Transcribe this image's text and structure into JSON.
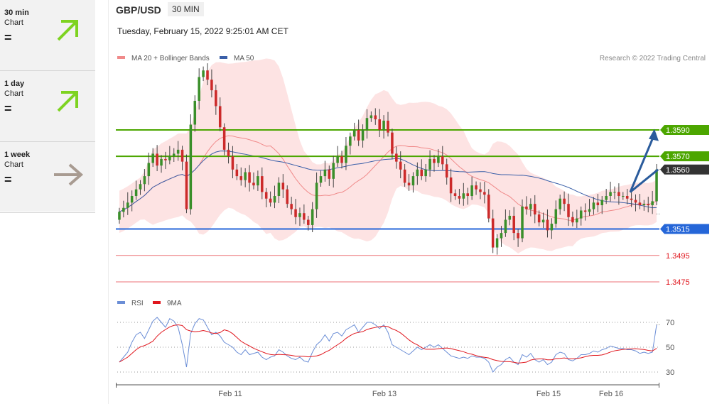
{
  "sidebar": {
    "items": [
      {
        "period": "30 min",
        "sub": "Chart",
        "signal": "=",
        "arrow_color": "#7ed321",
        "direction": "up"
      },
      {
        "period": "1 day",
        "sub": "Chart",
        "signal": "=",
        "arrow_color": "#7ed321",
        "direction": "up"
      },
      {
        "period": "1 week",
        "sub": "Chart",
        "signal": "=",
        "arrow_color": "#a89b91",
        "direction": "flat"
      }
    ]
  },
  "header": {
    "pair": "GBP/USD",
    "timeframe": "30 MIN",
    "timestamp": "Tuesday, February 15, 2022 9:25:01 AM CET"
  },
  "chart_data": [
    {
      "type": "candlestick",
      "legend": [
        {
          "label": "MA 20 + Bollinger Bands",
          "color": "#f08a8a"
        },
        {
          "label": "MA 50",
          "color": "#3a5fa8"
        }
      ],
      "credit": "Research © 2022 Trading Central",
      "x_ticks": [
        "Feb 11",
        "Feb 13",
        "Feb 15",
        "Feb 16"
      ],
      "ylim": [
        1.3468,
        1.3655
      ],
      "last_price": {
        "value": 1.356,
        "label": "1.3560",
        "color": "#333333"
      },
      "levels": [
        {
          "value": 1.359,
          "label": "1.3590",
          "type": "resistance",
          "color": "#4ca600"
        },
        {
          "value": 1.357,
          "label": "1.3570",
          "type": "resistance",
          "color": "#4ca600"
        },
        {
          "value": 1.3515,
          "label": "1.3515",
          "type": "pivot",
          "color": "#2566d8"
        },
        {
          "value": 1.3495,
          "label": "1.3495",
          "type": "support",
          "color": "#e0161d"
        },
        {
          "value": 1.3475,
          "label": "1.3475",
          "type": "support",
          "color": "#e0161d"
        }
      ],
      "forecast": [
        1.356,
        1.3543,
        1.3588
      ],
      "closes": [
        1.3528,
        1.3531,
        1.3535,
        1.354,
        1.3545,
        1.3549,
        1.3555,
        1.3565,
        1.3572,
        1.3563,
        1.3568,
        1.3567,
        1.357,
        1.3572,
        1.3575,
        1.3566,
        1.353,
        1.3594,
        1.3612,
        1.363,
        1.3635,
        1.3628,
        1.362,
        1.3608,
        1.3592,
        1.3575,
        1.357,
        1.356,
        1.3555,
        1.3552,
        1.3558,
        1.355,
        1.3548,
        1.3555,
        1.3543,
        1.3538,
        1.3535,
        1.354,
        1.355,
        1.3545,
        1.3534,
        1.353,
        1.3524,
        1.3527,
        1.3522,
        1.3518,
        1.353,
        1.355,
        1.3555,
        1.356,
        1.3553,
        1.3565,
        1.357,
        1.3565,
        1.3578,
        1.3585,
        1.359,
        1.3582,
        1.359,
        1.3599,
        1.3601,
        1.3598,
        1.359,
        1.3597,
        1.3588,
        1.3572,
        1.3566,
        1.356,
        1.355,
        1.3548,
        1.3555,
        1.356,
        1.3555,
        1.356,
        1.3568,
        1.3565,
        1.357,
        1.3564,
        1.3554,
        1.3542,
        1.354,
        1.3538,
        1.3542,
        1.354,
        1.3548,
        1.3545,
        1.3543,
        1.3541,
        1.3523,
        1.3501,
        1.3508,
        1.3512,
        1.3522,
        1.3525,
        1.3512,
        1.3508,
        1.3532,
        1.353,
        1.3534,
        1.3526,
        1.352,
        1.3522,
        1.3514,
        1.3519,
        1.353,
        1.3538,
        1.3534,
        1.3524,
        1.352,
        1.3523,
        1.3529,
        1.3528,
        1.353,
        1.3535,
        1.3533,
        1.3537,
        1.354,
        1.3543,
        1.3543,
        1.354,
        1.354,
        1.3538,
        1.3537,
        1.3535,
        1.3533,
        1.3534,
        1.3533,
        1.3536,
        1.356
      ]
    },
    {
      "type": "line",
      "legend": [
        {
          "label": "RSI",
          "color": "#6b8ed6"
        },
        {
          "label": "9MA",
          "color": "#e0161d"
        }
      ],
      "y_ticks": [
        "70",
        "50",
        "30"
      ],
      "ylim": [
        22,
        78
      ],
      "rsi": [
        38,
        42,
        46,
        54,
        60,
        62,
        57,
        64,
        71,
        74,
        70,
        66,
        73,
        71,
        66,
        52,
        34,
        61,
        69,
        73,
        72,
        66,
        60,
        62,
        59,
        54,
        52,
        50,
        46,
        44,
        48,
        44,
        45,
        46,
        42,
        40,
        42,
        43,
        48,
        46,
        43,
        41,
        40,
        42,
        39,
        38,
        46,
        52,
        55,
        60,
        55,
        61,
        62,
        59,
        64,
        66,
        68,
        62,
        66,
        70,
        70,
        68,
        65,
        68,
        62,
        52,
        50,
        48,
        46,
        44,
        47,
        50,
        48,
        50,
        52,
        50,
        52,
        49,
        46,
        43,
        42,
        41,
        42,
        41,
        43,
        42,
        42,
        41,
        38,
        30,
        34,
        36,
        40,
        42,
        38,
        36,
        44,
        42,
        45,
        40,
        38,
        40,
        36,
        38,
        44,
        46,
        45,
        40,
        39,
        41,
        44,
        44,
        45,
        47,
        46,
        48,
        49,
        51,
        50,
        49,
        49,
        48,
        48,
        47,
        45,
        46,
        45,
        46,
        68
      ]
    }
  ]
}
